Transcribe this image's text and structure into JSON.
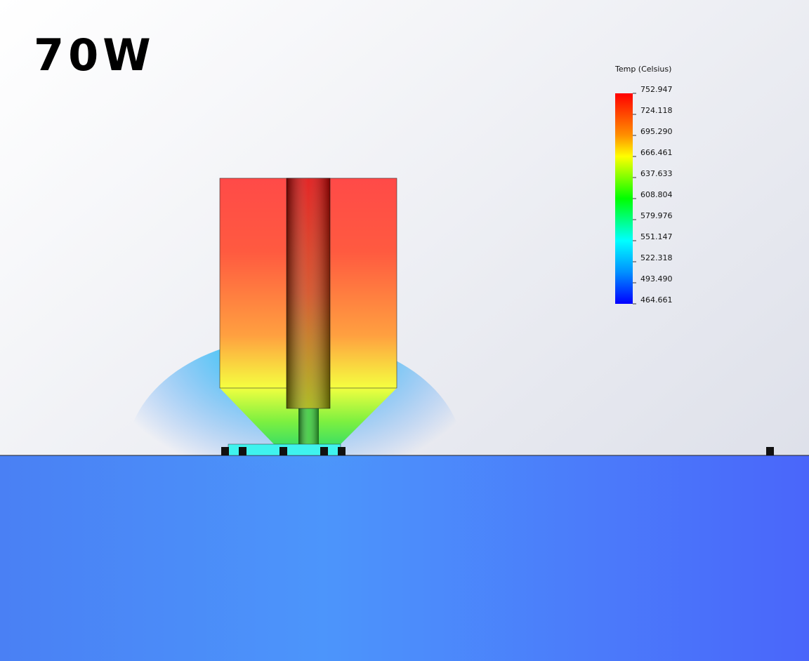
{
  "annotation": "70W",
  "legend": {
    "title": "Temp (Celsius)",
    "labels": [
      "752.947",
      "724.118",
      "695.290",
      "666.461",
      "637.633",
      "608.804",
      "579.976",
      "551.147",
      "522.318",
      "493.490",
      "464.661"
    ]
  }
}
